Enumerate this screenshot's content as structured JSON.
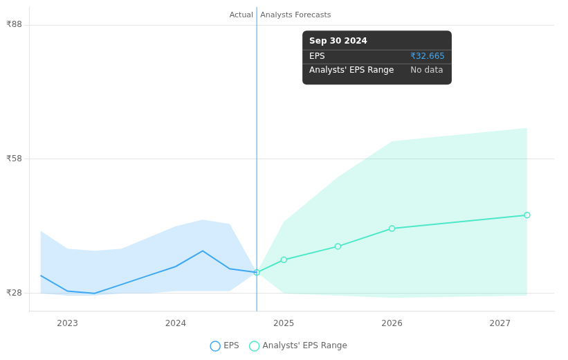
{
  "chart_data": {
    "type": "line",
    "xlim": [
      2022.65,
      2027.5
    ],
    "xticks": [
      2023,
      2024,
      2025,
      2026,
      2027
    ],
    "ylim": [
      24,
      92
    ],
    "yticks": [
      {
        "value": 28,
        "label": "₹28"
      },
      {
        "value": 58,
        "label": "₹58"
      },
      {
        "value": 88,
        "label": "₹88"
      }
    ],
    "grid": true,
    "legend": "bottom",
    "series": [
      {
        "name": "EPS",
        "color": "#3da8f5",
        "x": [
          2022.75,
          2023.0,
          2023.25,
          2023.5,
          2023.75,
          2024.0,
          2024.25,
          2024.5,
          2024.75
        ],
        "values": [
          32.0,
          28.5,
          28.0,
          30.0,
          32.0,
          34.0,
          37.5,
          33.5,
          32.665
        ],
        "range_upper": [
          42.0,
          38.0,
          37.5,
          38.0,
          40.5,
          43.0,
          44.5,
          43.5,
          32.665
        ],
        "range_lower": [
          28.0,
          27.5,
          27.5,
          28.0,
          28.0,
          28.5,
          28.5,
          28.5,
          32.665
        ]
      },
      {
        "name": "Analysts' EPS Range",
        "color": "#4ee8c8",
        "marker": "circle",
        "x": [
          2024.75,
          2025.0,
          2025.5,
          2026.0,
          2027.25
        ],
        "values": [
          32.665,
          35.5,
          38.5,
          42.5,
          45.5
        ],
        "range_upper": [
          32.665,
          44.0,
          54.0,
          62.0,
          65.0
        ],
        "range_lower": [
          32.665,
          28.0,
          27.5,
          27.0,
          27.5
        ]
      }
    ],
    "divider": {
      "x": 2024.75,
      "color": "#3da8f5",
      "labels": [
        "Actual",
        "Analysts Forecasts"
      ]
    },
    "tooltip": {
      "title": "Sep 30 2024",
      "rows": [
        {
          "label": "EPS",
          "value": "₹32.665",
          "color": "#3da8f5"
        },
        {
          "label": "Analysts' EPS Range",
          "value": "No data"
        }
      ]
    }
  }
}
